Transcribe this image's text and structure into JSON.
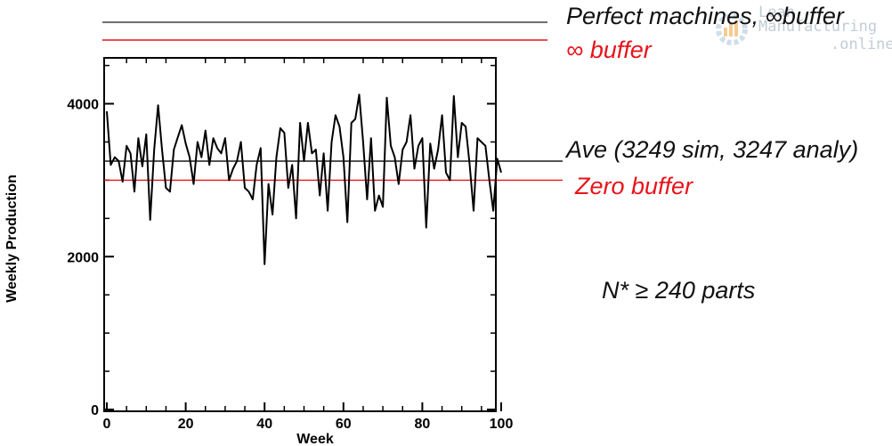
{
  "chart_data": {
    "type": "line",
    "xlabel": "Week",
    "ylabel": "Weekly Production",
    "xlim": [
      0,
      100
    ],
    "ylim": [
      0,
      4600
    ],
    "xticks": [
      "0",
      "20",
      "40",
      "60",
      "80",
      "100"
    ],
    "yticks": [
      "0",
      "2000",
      "4000"
    ],
    "x": [
      0,
      1,
      2,
      3,
      4,
      5,
      6,
      7,
      8,
      9,
      10,
      11,
      12,
      13,
      14,
      15,
      16,
      17,
      18,
      19,
      20,
      21,
      22,
      23,
      24,
      25,
      26,
      27,
      28,
      29,
      30,
      31,
      32,
      33,
      34,
      35,
      36,
      37,
      38,
      39,
      40,
      41,
      42,
      43,
      44,
      45,
      46,
      47,
      48,
      49,
      50,
      51,
      52,
      53,
      54,
      55,
      56,
      57,
      58,
      59,
      60,
      61,
      62,
      63,
      64,
      65,
      66,
      67,
      68,
      69,
      70,
      71,
      72,
      73,
      74,
      75,
      76,
      77,
      78,
      79,
      80,
      81,
      82,
      83,
      84,
      85,
      86,
      87,
      88,
      89,
      90,
      91,
      92,
      93,
      94,
      95,
      96,
      97,
      98,
      99,
      100
    ],
    "series": [
      {
        "values": [
          3900,
          3200,
          3300,
          3250,
          2980,
          3450,
          3350,
          2850,
          3550,
          3180,
          3600,
          2480,
          3400,
          3980,
          3400,
          2900,
          2850,
          3400,
          3560,
          3720,
          3480,
          3300,
          2950,
          3500,
          3300,
          3650,
          3200,
          3550,
          3420,
          3350,
          3550,
          3000,
          3150,
          3250,
          3500,
          2900,
          2850,
          2750,
          3200,
          3420,
          1900,
          2950,
          2550,
          3300,
          3680,
          3620,
          2900,
          3200,
          2500,
          3750,
          3250,
          3750,
          3350,
          3400,
          2800,
          3350,
          2600,
          3500,
          3850,
          3700,
          3300,
          2450,
          3750,
          3800,
          4120,
          3500,
          2750,
          3550,
          2600,
          2800,
          2650,
          4080,
          3450,
          3300,
          2950,
          3400,
          3500,
          3850,
          3150,
          3450,
          3550,
          2380,
          3480,
          3150,
          3400,
          3850,
          3100,
          3000,
          4100,
          3300,
          3750,
          3700,
          3200,
          2600,
          3550,
          3500,
          3450,
          3000,
          2600,
          3280,
          3100
        ]
      }
    ],
    "reference_lines": [
      {
        "value": 3249,
        "color": "#1a1a1a"
      },
      {
        "value": 3000,
        "color": "#e8141b"
      }
    ]
  },
  "annotations": {
    "perfect": "Perfect machines, ∞buffer",
    "inf_buffer": "∞ buffer",
    "ave": "Ave (3249 sim, 3247 analy)",
    "zero_buffer": "Zero buffer",
    "nstar": "N* ≥ 240 parts"
  },
  "top_lines": {
    "perfect_color": "#1a1a1a",
    "inf_buffer_color": "#e8141b"
  },
  "watermark": {
    "line1": "Lean",
    "line2": "Manufacturing",
    "line3": ".online"
  }
}
